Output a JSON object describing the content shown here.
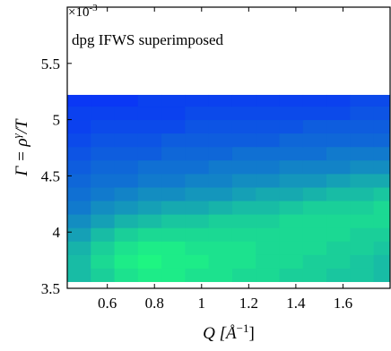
{
  "chart_data": {
    "type": "heatmap",
    "annotation": "dpg IFWS superimposed",
    "xlabel": {
      "base": "Q [Å",
      "sup": "−1",
      "tail": "]"
    },
    "ylabel": {
      "base": "Γ = ρ",
      "sup": "γ",
      "tail": "/T"
    },
    "yexponent": {
      "base": "×10",
      "sup": "-3"
    },
    "xlim": [
      0.43,
      1.8
    ],
    "ylim": [
      3.5,
      6.0
    ],
    "xticks": [
      0.6,
      0.8,
      1,
      1.2,
      1.4,
      1.6
    ],
    "yticks": [
      3.5,
      4,
      4.5,
      5,
      5.5
    ],
    "xbins": [
      0.43,
      0.53,
      0.63,
      0.73,
      0.83,
      0.93,
      1.03,
      1.13,
      1.23,
      1.33,
      1.43,
      1.53,
      1.63,
      1.73,
      1.8
    ],
    "ybins": [
      3.56,
      3.68,
      3.8,
      3.92,
      4.04,
      4.16,
      4.28,
      4.4,
      4.52,
      4.64,
      4.76,
      4.88,
      5.0,
      5.12,
      5.22
    ],
    "zlim": [
      0,
      1
    ],
    "colormap": [
      "#0a37f5",
      "#1ef582"
    ],
    "z": [
      [
        0.7,
        0.8,
        0.9,
        0.95,
        0.95,
        0.9,
        0.9,
        0.85,
        0.85,
        0.8,
        0.8,
        0.75,
        0.75,
        0.7
      ],
      [
        0.7,
        0.85,
        0.95,
        1,
        0.95,
        0.95,
        0.9,
        0.9,
        0.85,
        0.85,
        0.8,
        0.8,
        0.75,
        0.7
      ],
      [
        0.65,
        0.8,
        0.9,
        0.95,
        0.95,
        0.9,
        0.9,
        0.9,
        0.85,
        0.85,
        0.85,
        0.8,
        0.8,
        0.75
      ],
      [
        0.55,
        0.7,
        0.8,
        0.85,
        0.85,
        0.85,
        0.85,
        0.85,
        0.85,
        0.85,
        0.85,
        0.85,
        0.8,
        0.8
      ],
      [
        0.45,
        0.55,
        0.65,
        0.7,
        0.75,
        0.75,
        0.8,
        0.8,
        0.8,
        0.85,
        0.85,
        0.85,
        0.85,
        0.85
      ],
      [
        0.35,
        0.45,
        0.5,
        0.55,
        0.6,
        0.6,
        0.65,
        0.7,
        0.7,
        0.75,
        0.8,
        0.8,
        0.8,
        0.85
      ],
      [
        0.3,
        0.35,
        0.4,
        0.45,
        0.45,
        0.5,
        0.5,
        0.55,
        0.6,
        0.6,
        0.65,
        0.7,
        0.7,
        0.75
      ],
      [
        0.25,
        0.3,
        0.3,
        0.35,
        0.35,
        0.4,
        0.4,
        0.45,
        0.45,
        0.5,
        0.5,
        0.55,
        0.6,
        0.6
      ],
      [
        0.2,
        0.25,
        0.25,
        0.3,
        0.3,
        0.3,
        0.35,
        0.35,
        0.35,
        0.4,
        0.4,
        0.4,
        0.45,
        0.45
      ],
      [
        0.15,
        0.2,
        0.2,
        0.2,
        0.25,
        0.25,
        0.25,
        0.3,
        0.3,
        0.3,
        0.3,
        0.35,
        0.35,
        0.35
      ],
      [
        0.1,
        0.15,
        0.15,
        0.15,
        0.2,
        0.2,
        0.2,
        0.2,
        0.2,
        0.25,
        0.25,
        0.25,
        0.25,
        0.25
      ],
      [
        0.05,
        0.1,
        0.1,
        0.1,
        0.1,
        0.15,
        0.15,
        0.15,
        0.15,
        0.15,
        0.2,
        0.2,
        0.2,
        0.2
      ],
      [
        0.05,
        0.05,
        0.05,
        0.05,
        0.05,
        0.1,
        0.1,
        0.1,
        0.1,
        0.1,
        0.1,
        0.1,
        0.15,
        0.15
      ],
      [
        0,
        0,
        0,
        0.05,
        0.05,
        0.05,
        0.05,
        0.05,
        0.05,
        0.05,
        0.05,
        0.05,
        0.1,
        0.1
      ]
    ]
  }
}
